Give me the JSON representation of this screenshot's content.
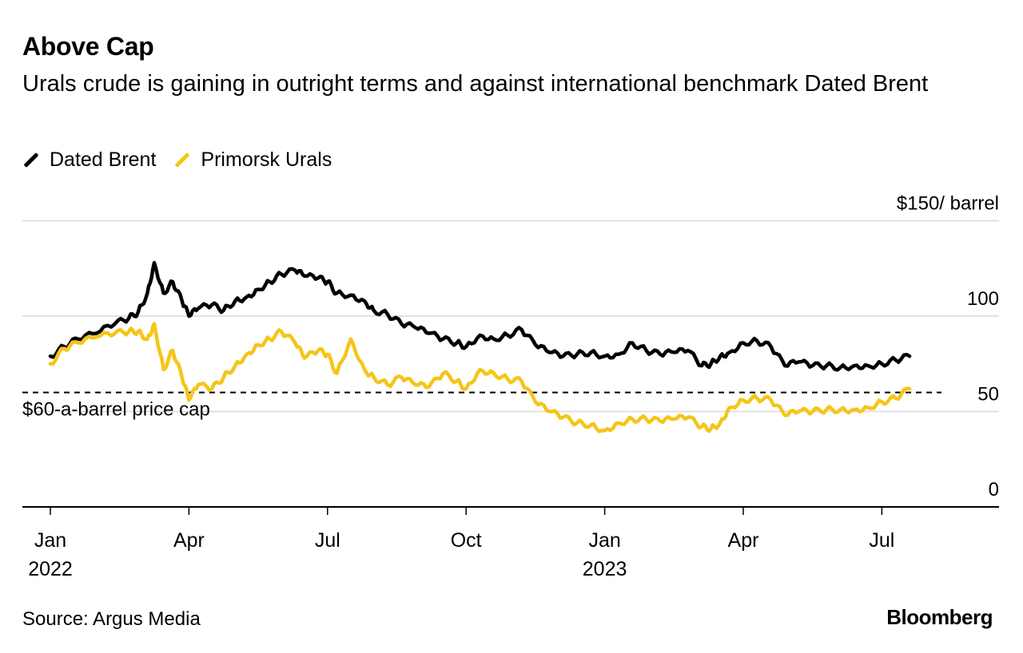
{
  "header": {
    "title": "Above Cap",
    "subtitle": "Urals crude is gaining in outright terms and against international benchmark Dated Brent"
  },
  "footer": {
    "source": "Source: Argus Media",
    "brand": "Bloomberg"
  },
  "colors": {
    "brent": "#000000",
    "urals": "#f5c518",
    "grid": "#d9d9d9",
    "axis": "#000000"
  },
  "chart_data": {
    "type": "line",
    "title": "Above Cap",
    "ylabel": "$150/ barrel",
    "ylim": [
      0,
      150
    ],
    "x_unit": "months since Jan 1 2022",
    "xlim": [
      0,
      20.4
    ],
    "y_ticks": [
      {
        "value": 0,
        "label": "0"
      },
      {
        "value": 50,
        "label": "50"
      },
      {
        "value": 100,
        "label": "100"
      },
      {
        "value": 150,
        "label": "$150/ barrel"
      }
    ],
    "x_ticks": [
      {
        "value": 0,
        "label": "Jan",
        "year": "2022"
      },
      {
        "value": 3,
        "label": "Apr",
        "year": ""
      },
      {
        "value": 6,
        "label": "Jul",
        "year": ""
      },
      {
        "value": 9,
        "label": "Oct",
        "year": ""
      },
      {
        "value": 12,
        "label": "Jan",
        "year": "2023"
      },
      {
        "value": 15,
        "label": "Apr",
        "year": ""
      },
      {
        "value": 18,
        "label": "Jul",
        "year": ""
      }
    ],
    "reference_line": {
      "value": 60,
      "label": "$60-a-barrel price cap"
    },
    "series": [
      {
        "name": "Dated Brent",
        "color": "#000000",
        "x": [
          0,
          0.3,
          0.6,
          1.0,
          1.4,
          1.7,
          1.9,
          2.1,
          2.25,
          2.45,
          2.65,
          2.85,
          3.0,
          3.2,
          3.5,
          3.75,
          4.0,
          4.25,
          4.5,
          4.75,
          5.0,
          5.3,
          5.5,
          5.8,
          6.0,
          6.2,
          6.5,
          6.8,
          7.0,
          7.3,
          7.6,
          7.9,
          8.2,
          8.5,
          8.8,
          9.0,
          9.3,
          9.6,
          9.9,
          10.2,
          10.5,
          10.8,
          11.1,
          11.4,
          11.7,
          12.0,
          12.3,
          12.6,
          12.9,
          13.2,
          13.5,
          13.8,
          14.1,
          14.3,
          14.5,
          14.7,
          15.0,
          15.3,
          15.6,
          15.9,
          16.2,
          16.5,
          16.8,
          17.1,
          17.4,
          17.7,
          18.0,
          18.3,
          18.6
        ],
        "values": [
          79,
          84,
          88,
          91,
          96,
          99,
          102,
          112,
          128,
          112,
          118,
          108,
          100,
          104,
          106,
          103,
          108,
          110,
          114,
          118,
          122,
          124,
          121,
          120,
          118,
          112,
          111,
          108,
          103,
          101,
          96,
          94,
          91,
          88,
          86,
          84,
          90,
          88,
          90,
          93,
          85,
          81,
          79,
          80,
          81,
          79,
          80,
          86,
          82,
          80,
          81,
          82,
          74,
          75,
          79,
          81,
          86,
          87,
          84,
          74,
          76,
          74,
          74,
          73,
          74,
          74,
          75,
          77,
          79
        ]
      },
      {
        "name": "Primorsk Urals",
        "color": "#f5c518",
        "x": [
          0,
          0.3,
          0.6,
          1.0,
          1.4,
          1.7,
          1.9,
          2.1,
          2.25,
          2.45,
          2.65,
          2.85,
          3.0,
          3.2,
          3.5,
          3.75,
          4.0,
          4.25,
          4.5,
          4.75,
          5.0,
          5.3,
          5.5,
          5.8,
          6.0,
          6.2,
          6.5,
          6.8,
          7.0,
          7.3,
          7.6,
          7.9,
          8.2,
          8.5,
          8.8,
          9.0,
          9.3,
          9.6,
          9.9,
          10.2,
          10.5,
          10.8,
          11.1,
          11.4,
          11.7,
          12.0,
          12.3,
          12.6,
          12.9,
          13.2,
          13.5,
          13.8,
          14.1,
          14.3,
          14.5,
          14.7,
          15.0,
          15.3,
          15.6,
          15.9,
          16.2,
          16.5,
          16.8,
          17.1,
          17.4,
          17.7,
          18.0,
          18.3,
          18.6
        ],
        "values": [
          75,
          83,
          86,
          89,
          91,
          92,
          92,
          88,
          96,
          72,
          82,
          68,
          56,
          64,
          62,
          68,
          74,
          80,
          85,
          88,
          92,
          86,
          78,
          82,
          80,
          70,
          88,
          72,
          68,
          64,
          68,
          64,
          63,
          70,
          66,
          62,
          72,
          70,
          67,
          66,
          55,
          50,
          47,
          44,
          43,
          40,
          44,
          46,
          46,
          45,
          46,
          47,
          42,
          41,
          44,
          52,
          56,
          57,
          56,
          48,
          50,
          50,
          51,
          51,
          51,
          52,
          55,
          57,
          62
        ]
      }
    ]
  }
}
